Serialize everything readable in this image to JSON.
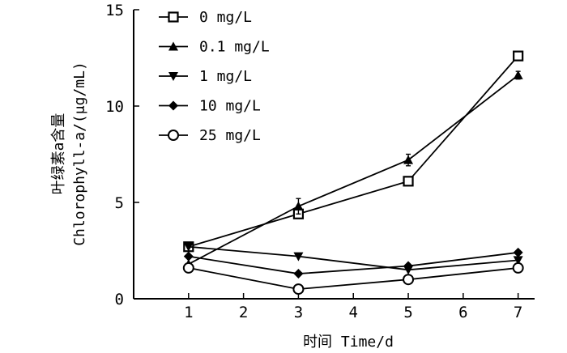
{
  "chart_data": {
    "type": "line",
    "title": "",
    "xlabel": "时间 Time/d",
    "ylabel_cn": "叶绿素a含量",
    "ylabel_en": "Chlorophyll-a/(μg/mL)",
    "xlim": [
      0,
      7.3
    ],
    "ylim": [
      0,
      15
    ],
    "xticks": [
      1,
      2,
      3,
      4,
      5,
      6,
      7
    ],
    "xtick_labels": [
      "1",
      "2",
      "3",
      "4",
      "5",
      "6",
      "7"
    ],
    "yticks": [
      0,
      5,
      10,
      15
    ],
    "ytick_labels": [
      "0",
      "5",
      "10",
      "15"
    ],
    "grid": false,
    "legend_position": "top-left",
    "x": [
      1,
      3,
      5,
      7
    ],
    "series": [
      {
        "name": "0 mg/L",
        "marker": "square",
        "values": [
          2.7,
          4.4,
          6.1,
          12.6
        ],
        "errors": [
          0,
          0.2,
          0.2,
          0.2
        ]
      },
      {
        "name": "0.1 mg/L",
        "marker": "triangle-up",
        "values": [
          1.8,
          4.8,
          7.2,
          11.6
        ],
        "errors": [
          0,
          0.4,
          0.3,
          0.2
        ]
      },
      {
        "name": "1 mg/L",
        "marker": "triangle-down",
        "values": [
          2.7,
          2.2,
          1.5,
          2.0
        ],
        "errors": [
          0,
          0,
          0,
          0
        ]
      },
      {
        "name": "10 mg/L",
        "marker": "diamond",
        "values": [
          2.2,
          1.3,
          1.7,
          2.4
        ],
        "errors": [
          0,
          0,
          0,
          0
        ]
      },
      {
        "name": "25 mg/L",
        "marker": "circle",
        "values": [
          1.6,
          0.5,
          1.0,
          1.6
        ],
        "errors": [
          0,
          0,
          0,
          0
        ]
      }
    ]
  }
}
